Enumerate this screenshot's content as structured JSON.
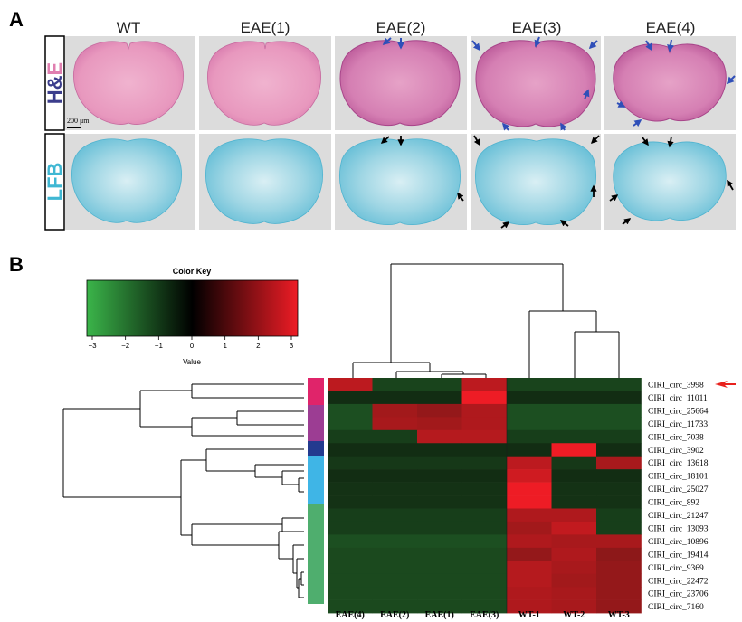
{
  "panel_a": {
    "letter": "A",
    "columns": [
      "WT",
      "EAE(1)",
      "EAE(2)",
      "EAE(3)",
      "EAE(4)"
    ],
    "row_labels": {
      "he_h": "H",
      "he_amp": "&",
      "he_e": "E",
      "lfb": "LFB"
    },
    "scale_bar": "200 μm",
    "colors": {
      "he_tissue": "#e99ac0",
      "he_dark": "#cf6fa6",
      "lfb_tissue": "#8ecfdf",
      "lfb_light": "#e6f4f7",
      "bg": "#dcdcdc",
      "arrow_blue": "#2f4fb8",
      "arrow_black": "#000000",
      "he_h": "#3b3d8c",
      "he_e": "#e07fb0",
      "lfb_text": "#3fb7d3"
    }
  },
  "panel_b": {
    "letter": "B",
    "color_key": {
      "title": "Color Key",
      "ticks": [
        "−3",
        "−2",
        "−1",
        "0",
        "1",
        "2",
        "3"
      ],
      "xlabel": "Value"
    },
    "group_colors": [
      "#e0246a",
      "#9c3d93",
      "#233a8f",
      "#3fb5e6",
      "#4fae6e"
    ],
    "pointer_color": "#e8211d"
  },
  "chart_data": {
    "type": "heatmap",
    "columns": [
      "EAE(4)",
      "EAE(2)",
      "EAE(1)",
      "EAE(3)",
      "WT-1",
      "WT-2",
      "WT-3"
    ],
    "rows": [
      "CIRI_circ_3998",
      "CIRI_circ_11011",
      "CIRI_circ_25664",
      "CIRI_circ_11733",
      "CIRI_circ_7038",
      "CIRI_circ_3902",
      "CIRI_circ_13618",
      "CIRI_circ_18101",
      "CIRI_circ_25027",
      "CIRI_circ_892",
      "CIRI_circ_21247",
      "CIRI_circ_13093",
      "CIRI_circ_10896",
      "CIRI_circ_19414",
      "CIRI_circ_9369",
      "CIRI_circ_22472",
      "CIRI_circ_23706",
      "CIRI_circ_7160"
    ],
    "values": [
      [
        2.2,
        -0.8,
        -0.8,
        2.2,
        -0.8,
        -0.8,
        -0.8
      ],
      [
        -0.4,
        -0.4,
        -0.4,
        3.0,
        -0.4,
        -0.4,
        -0.4
      ],
      [
        -1.0,
        1.8,
        1.6,
        2.0,
        -1.0,
        -1.0,
        -1.0
      ],
      [
        -1.0,
        1.9,
        1.8,
        2.0,
        -1.0,
        -1.0,
        -1.0
      ],
      [
        -0.7,
        -0.7,
        2.1,
        2.1,
        -0.7,
        -0.7,
        -0.7
      ],
      [
        -0.4,
        -0.4,
        -0.4,
        -0.4,
        -0.4,
        3.0,
        -0.4
      ],
      [
        -0.6,
        -0.6,
        -0.6,
        -0.6,
        2.2,
        -0.6,
        1.9
      ],
      [
        -0.4,
        -0.4,
        -0.4,
        -0.4,
        2.5,
        -0.4,
        -0.4
      ],
      [
        -0.5,
        -0.5,
        -0.5,
        -0.5,
        3.0,
        -0.5,
        -0.5
      ],
      [
        -0.5,
        -0.5,
        -0.5,
        -0.5,
        3.0,
        -0.5,
        -0.5
      ],
      [
        -0.7,
        -0.7,
        -0.7,
        -0.7,
        2.0,
        2.0,
        -0.7
      ],
      [
        -0.7,
        -0.7,
        -0.7,
        -0.7,
        1.8,
        2.3,
        -0.7
      ],
      [
        -1.0,
        -1.0,
        -1.0,
        -1.0,
        2.0,
        1.9,
        1.9
      ],
      [
        -0.9,
        -0.9,
        -0.9,
        -0.9,
        1.6,
        2.0,
        1.5
      ],
      [
        -0.9,
        -0.9,
        -0.9,
        -0.9,
        2.1,
        1.9,
        1.6
      ],
      [
        -0.9,
        -0.9,
        -0.9,
        -0.9,
        2.1,
        1.8,
        1.6
      ],
      [
        -0.9,
        -0.9,
        -0.9,
        -0.9,
        2.0,
        1.9,
        1.6
      ],
      [
        -0.9,
        -0.9,
        -0.9,
        -0.9,
        2.0,
        1.9,
        1.6
      ]
    ],
    "value_range": [
      -3,
      3
    ],
    "highlighted_row": "CIRI_circ_3998"
  }
}
